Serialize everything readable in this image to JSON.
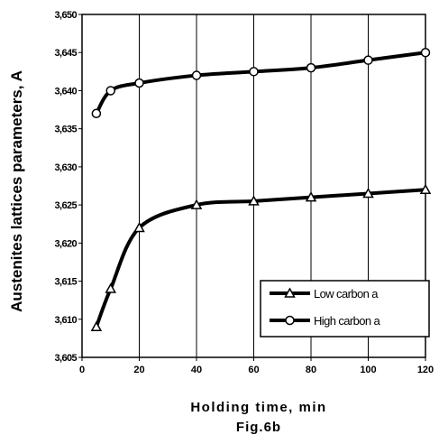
{
  "chart_data": {
    "type": "line",
    "xlabel": "Holding time, min",
    "ylabel": "Austenites lattices parameters, A",
    "caption": "Fig.6b",
    "xlim": [
      0,
      120
    ],
    "ylim": [
      3.605,
      3.65
    ],
    "x_ticks": [
      "0",
      "20",
      "40",
      "60",
      "80",
      "100",
      "120"
    ],
    "y_ticks": [
      "3,605",
      "3,610",
      "3,615",
      "3,620",
      "3,625",
      "3,630",
      "3,635",
      "3,640",
      "3,645",
      "3,650"
    ],
    "grid": "vertical",
    "legend_position": "lower-right",
    "series": [
      {
        "name": "Low carbon a",
        "marker": "triangle",
        "color": "#000000",
        "x": [
          5,
          10,
          20,
          40,
          60,
          80,
          100,
          120
        ],
        "y": [
          3.609,
          3.614,
          3.622,
          3.625,
          3.6255,
          3.626,
          3.6265,
          3.627
        ]
      },
      {
        "name": "High carbon a",
        "marker": "circle",
        "color": "#000000",
        "x": [
          5,
          10,
          20,
          40,
          60,
          80,
          100,
          120
        ],
        "y": [
          3.637,
          3.64,
          3.641,
          3.642,
          3.6425,
          3.643,
          3.644,
          3.645
        ]
      }
    ]
  }
}
